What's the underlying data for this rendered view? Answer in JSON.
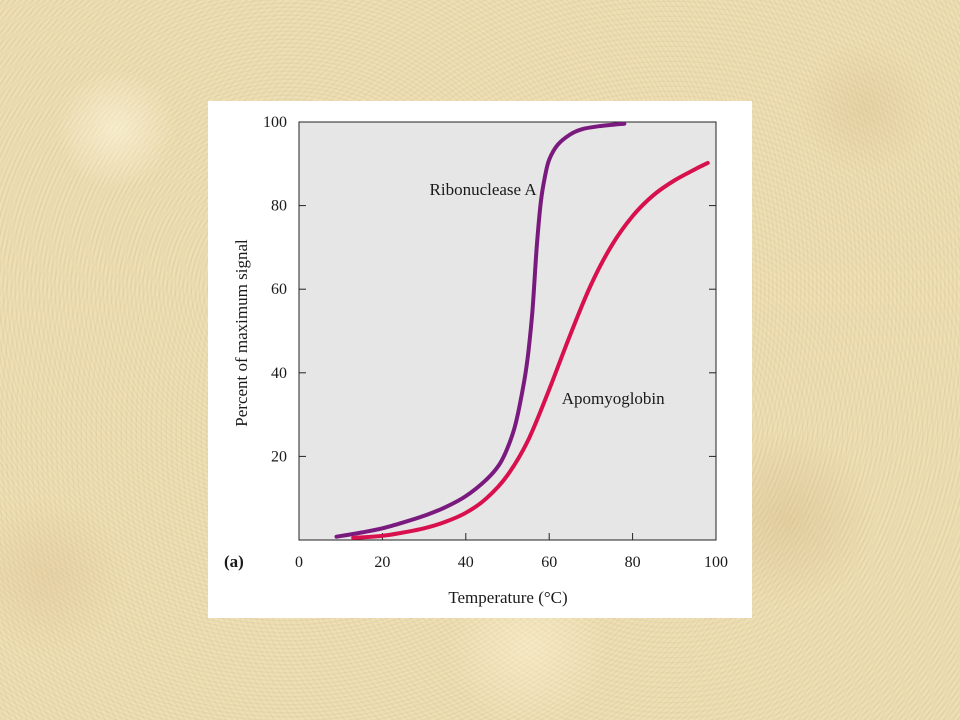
{
  "chart_data": {
    "type": "line",
    "panel_label": "(a)",
    "title": "",
    "xlabel": "Temperature (°C)",
    "ylabel": "Percent of maximum signal",
    "xlim": [
      0,
      100
    ],
    "ylim": [
      0,
      100
    ],
    "x_ticks": [
      0,
      20,
      40,
      60,
      80,
      100
    ],
    "y_ticks": [
      20,
      40,
      60,
      80,
      100
    ],
    "grid": false,
    "background": "#e6e6e6",
    "series": [
      {
        "name": "Ribonuclease A",
        "color": "#7a1a7e",
        "points": [
          [
            9,
            0.8
          ],
          [
            15,
            1.8
          ],
          [
            20,
            2.8
          ],
          [
            25,
            4.2
          ],
          [
            30,
            5.8
          ],
          [
            35,
            7.8
          ],
          [
            40,
            10.5
          ],
          [
            45,
            14.5
          ],
          [
            48,
            18
          ],
          [
            50,
            22
          ],
          [
            52,
            28
          ],
          [
            54,
            38
          ],
          [
            55,
            45
          ],
          [
            56,
            55
          ],
          [
            57,
            70
          ],
          [
            58,
            81
          ],
          [
            59,
            87
          ],
          [
            60,
            91
          ],
          [
            62,
            94.5
          ],
          [
            65,
            97
          ],
          [
            68,
            98.3
          ],
          [
            72,
            99
          ],
          [
            78,
            99.6
          ]
        ]
      },
      {
        "name": "Apomyoglobin",
        "color": "#d8104e",
        "points": [
          [
            13,
            0.5
          ],
          [
            20,
            1.0
          ],
          [
            25,
            1.8
          ],
          [
            30,
            2.8
          ],
          [
            35,
            4.3
          ],
          [
            40,
            6.5
          ],
          [
            45,
            10
          ],
          [
            50,
            15.5
          ],
          [
            55,
            24
          ],
          [
            60,
            36
          ],
          [
            65,
            49
          ],
          [
            70,
            61
          ],
          [
            75,
            70.5
          ],
          [
            80,
            77.5
          ],
          [
            85,
            82.5
          ],
          [
            90,
            86
          ],
          [
            95,
            88.7
          ],
          [
            98,
            90.2
          ]
        ]
      }
    ]
  }
}
